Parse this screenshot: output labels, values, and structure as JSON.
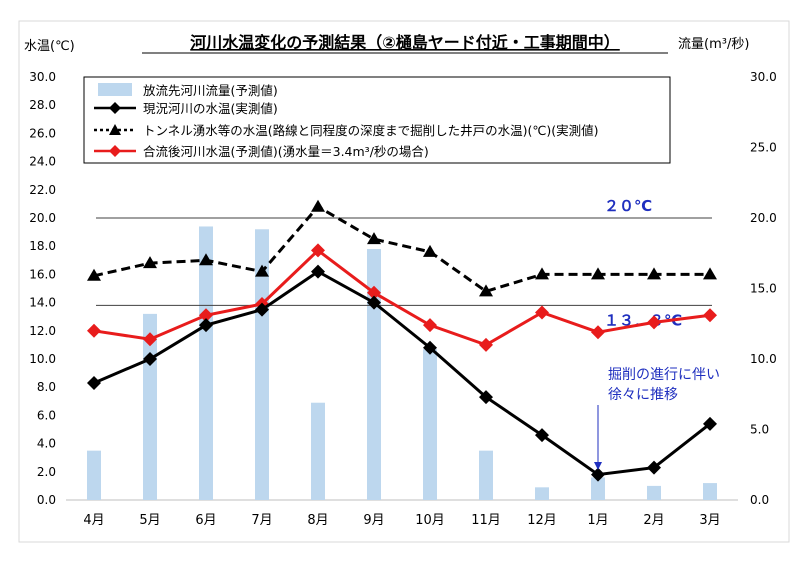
{
  "chart_data": {
    "type": "bar",
    "title": "河川水温変化の予測結果（②樋島ヤード付近・工事期間中）",
    "ylabel_left": "水温(℃)",
    "ylabel_right": "流量(m³/秒)",
    "categories": [
      "4月",
      "5月",
      "6月",
      "7月",
      "8月",
      "9月",
      "10月",
      "11月",
      "12月",
      "1月",
      "2月",
      "3月"
    ],
    "ylim_left": [
      0,
      30
    ],
    "ylim_right": [
      0,
      30
    ],
    "left_ticks": [
      "0.0",
      "2.0",
      "4.0",
      "6.0",
      "8.0",
      "10.0",
      "12.0",
      "14.0",
      "16.0",
      "18.0",
      "20.0",
      "22.0",
      "24.0",
      "26.0",
      "28.0",
      "30.0"
    ],
    "right_ticks": [
      "0.0",
      "5.0",
      "10.0",
      "15.0",
      "20.0",
      "25.0",
      "30.0"
    ],
    "series": [
      {
        "name": "放流先河川流量(予測値)",
        "kind": "bar",
        "axis": "right",
        "color": "#bdd7ee",
        "values": [
          3.5,
          13.2,
          19.4,
          19.2,
          6.9,
          17.8,
          10.7,
          3.5,
          0.9,
          1.6,
          1.0,
          1.2
        ]
      },
      {
        "name": "現況河川の水温(実測値)",
        "kind": "line",
        "axis": "left",
        "color": "#000000",
        "dash": "solid",
        "marker": "diamond",
        "values": [
          8.3,
          10.0,
          12.4,
          13.5,
          16.2,
          14.0,
          10.8,
          7.3,
          4.6,
          1.8,
          2.3,
          5.4
        ]
      },
      {
        "name": "トンネル湧水等の水温(路線と同程度の深度まで掘削した井戸の水温)(℃)(実測値)",
        "kind": "line",
        "axis": "left",
        "color": "#000000",
        "dash": "dashed",
        "marker": "triangle",
        "values": [
          15.9,
          16.8,
          17.0,
          16.2,
          20.8,
          18.5,
          17.6,
          14.8,
          16.0,
          16.0,
          16.0,
          16.0
        ]
      },
      {
        "name": "合流後河川水温(予測値)(湧水量＝3.4m³/秒の場合)",
        "kind": "line",
        "axis": "left",
        "color": "#e81c1c",
        "dash": "solid",
        "marker": "diamond",
        "values": [
          12.0,
          11.4,
          13.1,
          13.9,
          17.7,
          14.7,
          12.4,
          11.0,
          13.3,
          11.9,
          12.6,
          13.1
        ]
      }
    ],
    "reference_lines": [
      {
        "value": 20,
        "label": "２０℃"
      },
      {
        "value": 13.8,
        "label": "１３．８℃"
      }
    ],
    "annotation": {
      "line1": "掘削の進行に伴い",
      "line2": "徐々に推移"
    },
    "grid": false,
    "legend_position": "top-left"
  }
}
